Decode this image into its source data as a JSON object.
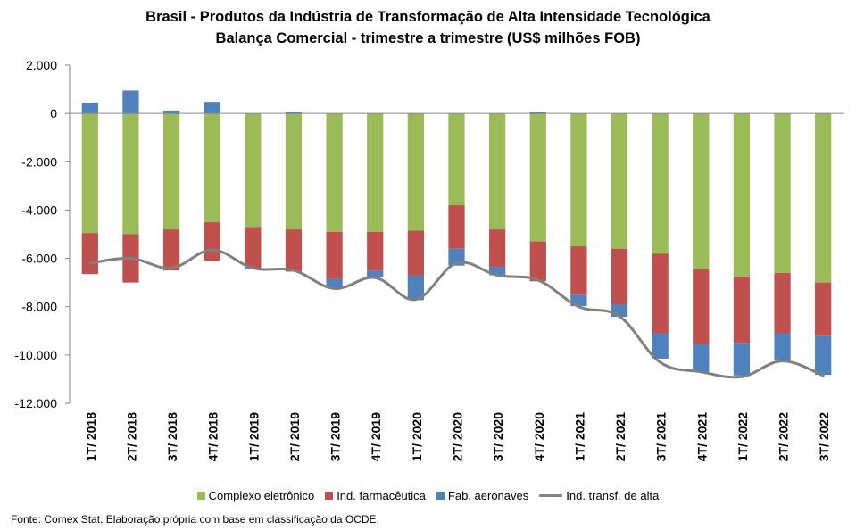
{
  "chart_data": {
    "type": "bar",
    "subtype": "stacked-bar-with-line",
    "title": "Brasil - Produtos da Indústria de Transformação  de Alta Intensidade Tecnológica",
    "subtitle": "Balança Comercial - trimestre a trimestre (US$ milhões FOB)",
    "xlabel": "",
    "ylabel": "",
    "ylim": [
      -12000,
      2000
    ],
    "yticks": [
      2000,
      0,
      -2000,
      -4000,
      -6000,
      -8000,
      -10000,
      -12000
    ],
    "ytick_labels": [
      "2.000",
      "0",
      "-2.000",
      "-4.000",
      "-6.000",
      "-8.000",
      "-10.000",
      "-12.000"
    ],
    "categories": [
      "1T/ 2018",
      "2T/ 2018",
      "3T/ 2018",
      "4T/ 2018",
      "1T/ 2019",
      "2T/ 2019",
      "3T/ 2019",
      "4T/ 2019",
      "1T/ 2020",
      "2T/ 2020",
      "3T/ 2020",
      "4T/ 2020",
      "1T/ 2021",
      "2T/ 2021",
      "3T/ 2021",
      "4T/ 2021",
      "1T/ 2022",
      "2T/ 2022",
      "3T/ 2022"
    ],
    "series": [
      {
        "name": "Complexo eletrônico",
        "type": "bar",
        "color": "#9BBB59",
        "values": [
          -4950,
          -5000,
          -4800,
          -4500,
          -4700,
          -4800,
          -4900,
          -4900,
          -4850,
          -3800,
          -4800,
          -5300,
          -5500,
          -5600,
          -5800,
          -6450,
          -6750,
          -6600,
          -7000
        ]
      },
      {
        "name": "Ind. farmacêutica",
        "type": "bar",
        "color": "#C0504D",
        "values": [
          -1700,
          -2000,
          -1700,
          -1600,
          -1700,
          -1750,
          -1950,
          -1600,
          -1850,
          -1800,
          -1550,
          -1650,
          -2000,
          -2300,
          -3300,
          -3100,
          -2750,
          -2500,
          -2200
        ]
      },
      {
        "name": "Fab. aeronaves",
        "type": "bar",
        "color": "#4F81BD",
        "values": [
          450,
          950,
          120,
          480,
          -30,
          80,
          -350,
          -270,
          -1030,
          -700,
          -350,
          50,
          -480,
          -520,
          -1050,
          -1150,
          -1350,
          -1100,
          -1620
        ]
      },
      {
        "name": "Ind. transf. de alta",
        "type": "line",
        "color": "#808080",
        "values": [
          -6200,
          -6000,
          -6400,
          -5650,
          -6400,
          -6500,
          -7250,
          -6800,
          -7700,
          -6200,
          -6700,
          -6900,
          -8000,
          -8400,
          -10300,
          -10700,
          -10900,
          -10250,
          -10850
        ]
      }
    ],
    "grid": false,
    "legend_position": "bottom"
  },
  "footer": {
    "source": "Fonte: Comex Stat. Elaboração própria com base em classificação da OCDE."
  }
}
